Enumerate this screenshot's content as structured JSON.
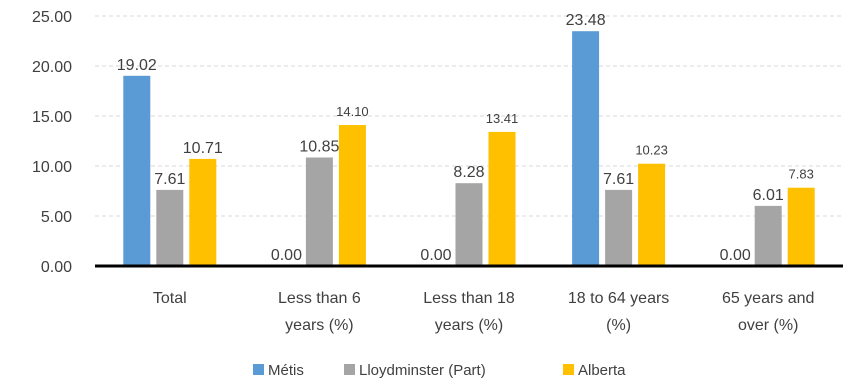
{
  "chart_data": {
    "type": "bar",
    "title": "",
    "xlabel": "",
    "ylabel": "",
    "ylim": [
      0,
      25
    ],
    "yticks": [
      0,
      5,
      10,
      15,
      20,
      25
    ],
    "ytick_labels": [
      "0.00",
      "5.00",
      "10.00",
      "15.00",
      "20.00",
      "25.00"
    ],
    "grid": true,
    "legend_position": "bottom",
    "categories": [
      [
        "Total"
      ],
      [
        "Less than 6",
        "years (%)"
      ],
      [
        "Less than 18",
        "years (%)"
      ],
      [
        "18 to 64 years",
        "(%)"
      ],
      [
        "65 years and",
        "over (%)"
      ]
    ],
    "series": [
      {
        "name": "Métis",
        "color": "#5B9BD5",
        "values": [
          19.02,
          0.0,
          0.0,
          23.48,
          0.0
        ],
        "labels": [
          "19.02",
          "0.00",
          "0.00",
          "23.48",
          "0.00"
        ]
      },
      {
        "name": "Lloydminster (Part)",
        "color": "#A5A5A5",
        "values": [
          7.61,
          10.85,
          8.28,
          7.61,
          6.01
        ],
        "labels": [
          "7.61",
          "10.85",
          "8.28",
          "7.61",
          "6.01"
        ]
      },
      {
        "name": "Alberta",
        "color": "#FFC000",
        "values": [
          10.71,
          14.1,
          13.41,
          10.23,
          7.83
        ],
        "labels": [
          "10.71",
          "14.10",
          "13.41",
          "10.23",
          "7.83"
        ]
      }
    ]
  }
}
